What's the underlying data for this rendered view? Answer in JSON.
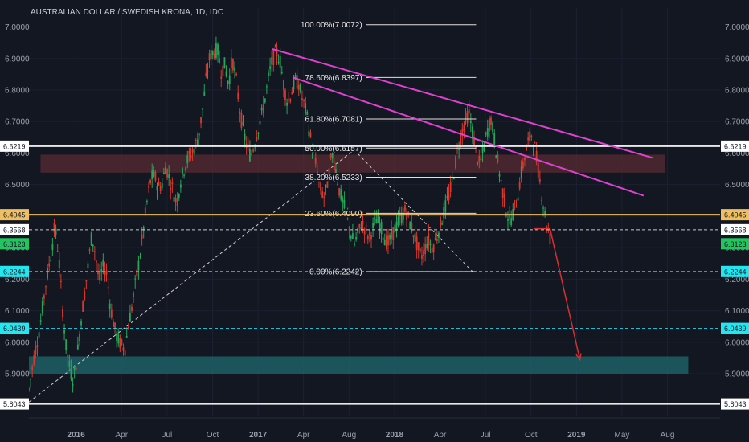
{
  "chart_data": {
    "type": "candlestick",
    "title": "AUSTRALIAN DOLLAR / SWEDISH KRONA, 1D, IDC",
    "ylim": [
      5.765,
      7.06
    ],
    "y_ticks": [
      "7.0000",
      "6.9000",
      "6.8000",
      "6.7000",
      "6.6000",
      "6.5000",
      "6.4000",
      "6.3000",
      "6.2000",
      "6.1000",
      "6.0000",
      "5.9000"
    ],
    "x_ticks": [
      "2016",
      "Apr",
      "Jul",
      "Oct",
      "2017",
      "Apr",
      "Aug",
      "2018",
      "Apr",
      "Jul",
      "Oct",
      "2019",
      "May",
      "Aug"
    ],
    "fib_levels": [
      {
        "label": "100.00%(7.0072)",
        "value": 7.0072
      },
      {
        "label": "78.60%(6.8397)",
        "value": 6.8397
      },
      {
        "label": "61.80%(6.7081)",
        "value": 6.7081
      },
      {
        "label": "50.00%(6.6157)",
        "value": 6.6157
      },
      {
        "label": "38.20%(6.5233)",
        "value": 6.5233
      },
      {
        "label": "23.60%(6.4090)",
        "value": 6.409
      },
      {
        "label": "0.00%(6.2242)",
        "value": 6.2242
      }
    ],
    "horizontal_levels": [
      {
        "label": "6.6219",
        "value": 6.6219,
        "style": "solid",
        "color": "#e8e8e8",
        "tag_bg": "#ffffff",
        "tag_fg": "#131722"
      },
      {
        "label": "6.4045",
        "value": 6.4045,
        "style": "solid",
        "color": "#f0c060",
        "tag_bg": "#f0c060",
        "tag_fg": "#131722"
      },
      {
        "label": "6.3568",
        "value": 6.3568,
        "style": "dashed",
        "color": "#c8c8c8",
        "tag_bg": "#ffffff",
        "tag_fg": "#131722"
      },
      {
        "label": "6.3123",
        "value": 6.3123,
        "style": "none",
        "color": "#26a65b",
        "tag_bg": "#22c55e",
        "tag_fg": "#131722"
      },
      {
        "label": "6.2244",
        "value": 6.2244,
        "style": "dashed",
        "color": "#22d3ee",
        "tag_bg": "#22e6f0",
        "tag_fg": "#131722"
      },
      {
        "label": "6.0439",
        "value": 6.0439,
        "style": "dashed",
        "color": "#22d3ee",
        "tag_bg": "#22e6f0",
        "tag_fg": "#131722"
      },
      {
        "label": "5.8043",
        "value": 5.8043,
        "style": "solid",
        "color": "#e8e8e8",
        "tag_bg": "#ffffff",
        "tag_fg": "#131722"
      }
    ],
    "zones": [
      {
        "name": "resistance-zone",
        "y_top": 6.595,
        "y_bottom": 6.538,
        "color": "#5a2b33"
      },
      {
        "name": "target-zone",
        "y_top": 5.955,
        "y_bottom": 5.9,
        "color": "#1f5f66"
      }
    ],
    "trendlines": [
      {
        "name": "upper-trendline",
        "p1": [
          0.3524,
          6.93
        ],
        "p2": [
          0.9022,
          6.585
        ],
        "color": "#e040d0"
      },
      {
        "name": "lower-trendline",
        "p1": [
          0.3818,
          6.84
        ],
        "p2": [
          0.8893,
          6.465
        ],
        "color": "#e040d0"
      }
    ],
    "price_path": [
      [
        0.0,
        5.85
      ],
      [
        0.008,
        5.96
      ],
      [
        0.016,
        6.05
      ],
      [
        0.024,
        6.18
      ],
      [
        0.0321,
        6.28
      ],
      [
        0.0374,
        6.37
      ],
      [
        0.0428,
        6.28
      ],
      [
        0.0481,
        6.12
      ],
      [
        0.0534,
        5.99
      ],
      [
        0.0588,
        5.92
      ],
      [
        0.0641,
        5.88
      ],
      [
        0.0695,
        5.95
      ],
      [
        0.0748,
        6.06
      ],
      [
        0.0802,
        6.15
      ],
      [
        0.0855,
        6.24
      ],
      [
        0.0909,
        6.34
      ],
      [
        0.0962,
        6.28
      ],
      [
        0.1016,
        6.19
      ],
      [
        0.1069,
        6.24
      ],
      [
        0.1123,
        6.22
      ],
      [
        0.1176,
        6.12
      ],
      [
        0.123,
        6.05
      ],
      [
        0.1283,
        6.01
      ],
      [
        0.1337,
        5.99
      ],
      [
        0.139,
        5.98
      ],
      [
        0.1444,
        6.06
      ],
      [
        0.1497,
        6.12
      ],
      [
        0.1551,
        6.2
      ],
      [
        0.1604,
        6.27
      ],
      [
        0.1658,
        6.36
      ],
      [
        0.1711,
        6.45
      ],
      [
        0.1765,
        6.52
      ],
      [
        0.1818,
        6.53
      ],
      [
        0.1872,
        6.49
      ],
      [
        0.1925,
        6.5
      ],
      [
        0.1979,
        6.56
      ],
      [
        0.2032,
        6.52
      ],
      [
        0.2086,
        6.48
      ],
      [
        0.2139,
        6.44
      ],
      [
        0.2193,
        6.51
      ],
      [
        0.2246,
        6.55
      ],
      [
        0.2299,
        6.58
      ],
      [
        0.2353,
        6.6
      ],
      [
        0.2406,
        6.62
      ],
      [
        0.246,
        6.66
      ],
      [
        0.2513,
        6.74
      ],
      [
        0.2567,
        6.84
      ],
      [
        0.262,
        6.91
      ],
      [
        0.2674,
        6.92
      ],
      [
        0.2727,
        6.93
      ],
      [
        0.2781,
        6.86
      ],
      [
        0.2834,
        6.88
      ],
      [
        0.2888,
        6.82
      ],
      [
        0.2941,
        6.9
      ],
      [
        0.2995,
        6.84
      ],
      [
        0.3048,
        6.74
      ],
      [
        0.3102,
        6.67
      ],
      [
        0.3155,
        6.62
      ],
      [
        0.3209,
        6.59
      ],
      [
        0.3262,
        6.63
      ],
      [
        0.3316,
        6.68
      ],
      [
        0.3369,
        6.72
      ],
      [
        0.3422,
        6.78
      ],
      [
        0.3476,
        6.85
      ],
      [
        0.3529,
        6.9
      ],
      [
        0.3583,
        6.92
      ],
      [
        0.3636,
        6.89
      ],
      [
        0.369,
        6.81
      ],
      [
        0.3743,
        6.76
      ],
      [
        0.3797,
        6.79
      ],
      [
        0.385,
        6.83
      ],
      [
        0.3904,
        6.82
      ],
      [
        0.3957,
        6.77
      ],
      [
        0.4011,
        6.73
      ],
      [
        0.4064,
        6.66
      ],
      [
        0.4118,
        6.6
      ],
      [
        0.4171,
        6.54
      ],
      [
        0.4225,
        6.48
      ],
      [
        0.4278,
        6.46
      ],
      [
        0.4332,
        6.52
      ],
      [
        0.4385,
        6.6
      ],
      [
        0.4439,
        6.55
      ],
      [
        0.4492,
        6.48
      ],
      [
        0.4545,
        6.44
      ],
      [
        0.4599,
        6.4
      ],
      [
        0.4652,
        6.35
      ],
      [
        0.4706,
        6.31
      ],
      [
        0.4759,
        6.34
      ],
      [
        0.4813,
        6.38
      ],
      [
        0.4866,
        6.36
      ],
      [
        0.492,
        6.33
      ],
      [
        0.4973,
        6.36
      ],
      [
        0.5027,
        6.39
      ],
      [
        0.508,
        6.37
      ],
      [
        0.5134,
        6.34
      ],
      [
        0.5187,
        6.31
      ],
      [
        0.5241,
        6.33
      ],
      [
        0.5294,
        6.36
      ],
      [
        0.5348,
        6.38
      ],
      [
        0.5401,
        6.4
      ],
      [
        0.5455,
        6.42
      ],
      [
        0.5508,
        6.38
      ],
      [
        0.5561,
        6.35
      ],
      [
        0.5615,
        6.31
      ],
      [
        0.5668,
        6.27
      ],
      [
        0.5722,
        6.29
      ],
      [
        0.5775,
        6.33
      ],
      [
        0.5829,
        6.3
      ],
      [
        0.5882,
        6.32
      ],
      [
        0.5936,
        6.36
      ],
      [
        0.5989,
        6.4
      ],
      [
        0.6043,
        6.44
      ],
      [
        0.6096,
        6.48
      ],
      [
        0.615,
        6.54
      ],
      [
        0.6203,
        6.61
      ],
      [
        0.6257,
        6.66
      ],
      [
        0.631,
        6.7
      ],
      [
        0.6364,
        6.73
      ],
      [
        0.6417,
        6.67
      ],
      [
        0.6471,
        6.6
      ],
      [
        0.6524,
        6.56
      ],
      [
        0.6578,
        6.61
      ],
      [
        0.6631,
        6.67
      ],
      [
        0.6684,
        6.71
      ],
      [
        0.6738,
        6.64
      ],
      [
        0.6791,
        6.56
      ],
      [
        0.6845,
        6.49
      ],
      [
        0.6898,
        6.43
      ],
      [
        0.6952,
        6.38
      ],
      [
        0.7005,
        6.41
      ],
      [
        0.7059,
        6.45
      ],
      [
        0.7112,
        6.52
      ],
      [
        0.7166,
        6.58
      ],
      [
        0.7219,
        6.63
      ],
      [
        0.7273,
        6.66
      ],
      [
        0.7326,
        6.61
      ],
      [
        0.738,
        6.53
      ],
      [
        0.7433,
        6.45
      ],
      [
        0.7487,
        6.38
      ],
      [
        0.754,
        6.33
      ]
    ],
    "projection": {
      "from": [
        0.754,
        6.36
      ],
      "to": [
        0.7972,
        5.945
      ],
      "color": "#d63031"
    },
    "fib_diagonal": {
      "p1": [
        0.0,
        5.81
      ],
      "p2": [
        0.4706,
        6.61
      ],
      "p3": [
        0.6417,
        6.2242
      ]
    }
  }
}
